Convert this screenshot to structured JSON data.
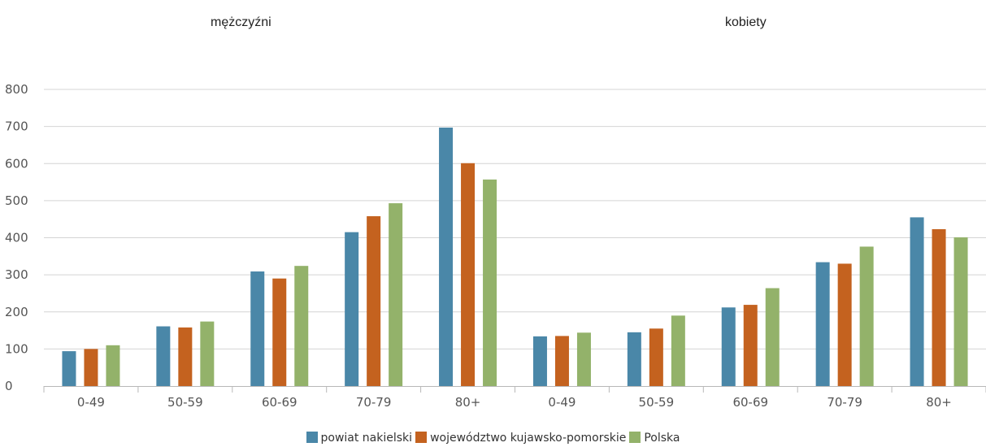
{
  "chart_data": {
    "type": "bar",
    "panels": [
      "mężczyźni",
      "kobiety"
    ],
    "categories": [
      "0-49",
      "50-59",
      "60-69",
      "70-79",
      "80+",
      "0-49",
      "50-59",
      "60-69",
      "70-79",
      "80+"
    ],
    "series": [
      {
        "name": "powiat nakielski",
        "color": "#4a87a8",
        "values": [
          94,
          161,
          309,
          415,
          697,
          134,
          145,
          212,
          334,
          455
        ]
      },
      {
        "name": "województwo kujawsko-pomorskie",
        "color": "#c4621f",
        "values": [
          100,
          158,
          290,
          458,
          601,
          135,
          155,
          219,
          330,
          423
        ]
      },
      {
        "name": "Polska",
        "color": "#93b26a",
        "values": [
          110,
          174,
          324,
          493,
          557,
          144,
          190,
          264,
          376,
          401
        ]
      }
    ],
    "ylim": [
      0,
      800
    ],
    "yticks": [
      0,
      100,
      200,
      300,
      400,
      500,
      600,
      700,
      800
    ],
    "grid": true,
    "legend_position": "bottom-center"
  }
}
